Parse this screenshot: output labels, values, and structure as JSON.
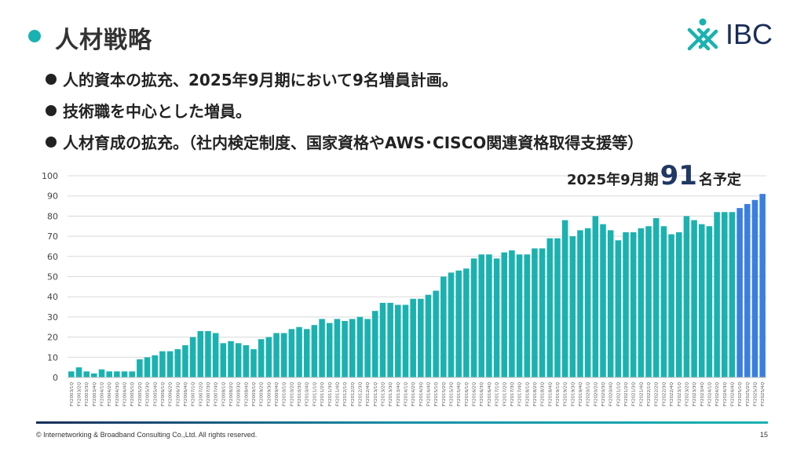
{
  "header": {
    "title": "人材戦略",
    "logo_text": "IBC",
    "accent_color": "#1ab2b0"
  },
  "bullets": [
    "人的資本の拡充、2025年9月期において9名増員計画。",
    "技術職を中心とした増員。",
    "人材育成の拡充。（社内検定制度、国家資格やAWS･CISCO関連資格取得支援等）"
  ],
  "annotation": {
    "prefix": "2025年9月期",
    "number": "91",
    "suffix": "名予定"
  },
  "footer": {
    "copyright": "© Internetworking & Broadband Consulting Co.,Ltd. All rights reserved.",
    "page_number": "15"
  },
  "chart_data": {
    "type": "bar",
    "ylim": [
      0,
      100
    ],
    "yticks": [
      0,
      10,
      20,
      30,
      40,
      50,
      60,
      70,
      80,
      90,
      100
    ],
    "grid": true,
    "colors": {
      "actual": "#1ab2b0",
      "forecast": "#3a7fe0"
    },
    "categories": [
      "FY2003/1Q",
      "FY2003/2Q",
      "FY2003/3Q",
      "FY2003/4Q",
      "FY2004/1Q",
      "FY2004/2Q",
      "FY2004/3Q",
      "FY2004/4Q",
      "FY2005/1Q",
      "FY2005/2Q",
      "FY2005/3Q",
      "FY2005/4Q",
      "FY2006/1Q",
      "FY2006/2Q",
      "FY2006/3Q",
      "FY2006/4Q",
      "FY2007/1Q",
      "FY2007/2Q",
      "FY2007/3Q",
      "FY2007/4Q",
      "FY2008/1Q",
      "FY2008/2Q",
      "FY2008/3Q",
      "FY2008/4Q",
      "FY2009/1Q",
      "FY2009/2Q",
      "FY2009/3Q",
      "FY2009/4Q",
      "FY2010/1Q",
      "FY2010/2Q",
      "FY2010/3Q",
      "FY2010/4Q",
      "FY2011/1Q",
      "FY2011/2Q",
      "FY2011/3Q",
      "FY2011/4Q",
      "FY2012/1Q",
      "FY2012/2Q",
      "FY2012/3Q",
      "FY2012/4Q",
      "FY2013/1Q",
      "FY2013/2Q",
      "FY2013/3Q",
      "FY2013/4Q",
      "FY2014/1Q",
      "FY2014/2Q",
      "FY2014/3Q",
      "FY2014/4Q",
      "FY2015/1Q",
      "FY2015/2Q",
      "FY2015/3Q",
      "FY2015/4Q",
      "FY2016/1Q",
      "FY2016/2Q",
      "FY2016/3Q",
      "FY2016/4Q",
      "FY2017/1Q",
      "FY2017/2Q",
      "FY2017/3Q",
      "FY2017/4Q",
      "FY2018/1Q",
      "FY2018/2Q",
      "FY2018/3Q",
      "FY2018/4Q",
      "FY2019/1Q",
      "FY2019/2Q",
      "FY2019/3Q",
      "FY2019/4Q",
      "FY2020/1Q",
      "FY2020/2Q",
      "FY2020/3Q",
      "FY2020/4Q",
      "FY2021/1Q",
      "FY2021/2Q",
      "FY2021/3Q",
      "FY2021/4Q",
      "FY2022/1Q",
      "FY2022/2Q",
      "FY2022/3Q",
      "FY2022/4Q",
      "FY2023/1Q",
      "FY2023/2Q",
      "FY2023/3Q",
      "FY2023/4Q",
      "FY2024/1Q",
      "FY2024/2Q",
      "FY2024/3Q",
      "FY2024/4Q",
      "FY2025/1Q",
      "FY2025/2Q",
      "FY2025/3Q",
      "FY2025/4Q"
    ],
    "values": [
      3,
      5,
      3,
      2,
      4,
      3,
      3,
      3,
      3,
      9,
      10,
      11,
      13,
      13,
      14,
      16,
      20,
      23,
      23,
      22,
      17,
      18,
      17,
      16,
      14,
      19,
      20,
      22,
      22,
      24,
      25,
      24,
      26,
      29,
      27,
      29,
      28,
      29,
      30,
      29,
      33,
      37,
      37,
      36,
      36,
      39,
      39,
      41,
      43,
      50,
      52,
      53,
      54,
      59,
      61,
      61,
      59,
      62,
      63,
      61,
      61,
      64,
      64,
      69,
      69,
      78,
      70,
      73,
      74,
      80,
      76,
      73,
      68,
      72,
      72,
      74,
      75,
      79,
      75,
      71,
      72,
      80,
      78,
      76,
      75,
      82,
      82,
      82,
      84,
      86,
      88,
      91
    ],
    "forecast_start_index": 88
  }
}
